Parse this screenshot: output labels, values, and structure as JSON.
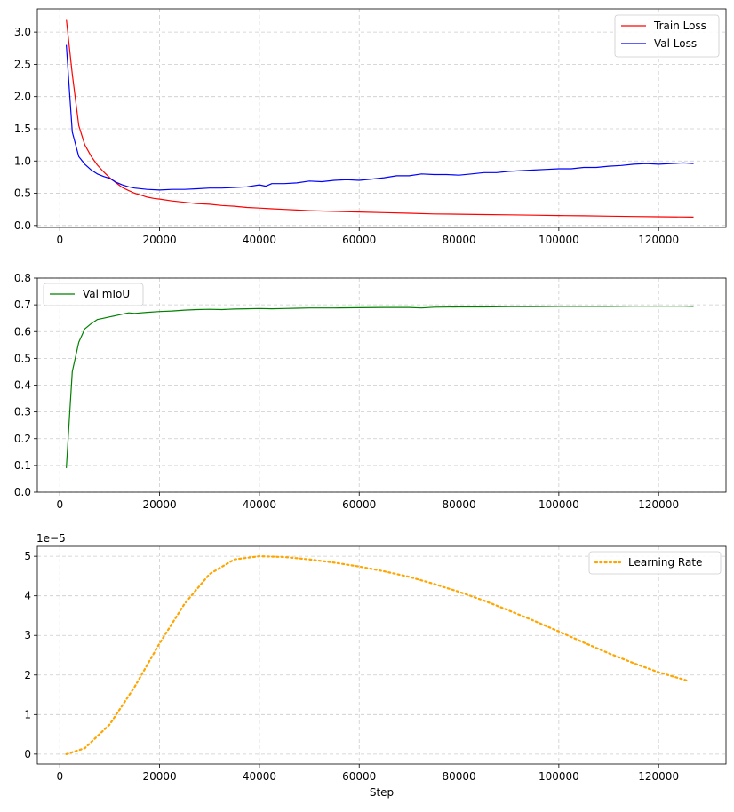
{
  "chart_data": [
    {
      "type": "line",
      "xlim": [
        -4500,
        133500
      ],
      "ylim": [
        -0.03,
        3.36
      ],
      "xticks": [
        0,
        20000,
        40000,
        60000,
        80000,
        100000,
        120000
      ],
      "xtick_labels": [
        "0",
        "20000",
        "40000",
        "60000",
        "80000",
        "100000",
        "120000"
      ],
      "yticks": [
        0.0,
        0.5,
        1.0,
        1.5,
        2.0,
        2.5,
        3.0
      ],
      "ytick_labels": [
        "0.0",
        "0.5",
        "1.0",
        "1.5",
        "2.0",
        "2.5",
        "3.0"
      ],
      "grid": true,
      "legend": "upper right",
      "series": [
        {
          "name": "Train Loss",
          "color": "#ff0000",
          "style": "solid",
          "x": [
            1300,
            2500,
            3800,
            5000,
            6300,
            7500,
            8800,
            10000,
            11300,
            12500,
            13800,
            15000,
            16300,
            17500,
            18800,
            20000,
            22500,
            25000,
            27500,
            30000,
            32500,
            35000,
            37500,
            40000,
            42500,
            45000,
            47500,
            50000,
            55000,
            60000,
            65000,
            70000,
            75000,
            80000,
            85000,
            90000,
            95000,
            100000,
            105000,
            110000,
            115000,
            120000,
            127000
          ],
          "y": [
            3.2,
            2.35,
            1.55,
            1.25,
            1.07,
            0.94,
            0.83,
            0.74,
            0.66,
            0.59,
            0.54,
            0.5,
            0.47,
            0.44,
            0.42,
            0.41,
            0.38,
            0.36,
            0.34,
            0.33,
            0.31,
            0.3,
            0.28,
            0.27,
            0.26,
            0.25,
            0.24,
            0.23,
            0.22,
            0.21,
            0.2,
            0.19,
            0.18,
            0.175,
            0.17,
            0.165,
            0.16,
            0.155,
            0.15,
            0.145,
            0.14,
            0.135,
            0.13
          ]
        },
        {
          "name": "Val Loss",
          "color": "#0000ff",
          "style": "solid",
          "x": [
            1300,
            2500,
            3800,
            5000,
            6300,
            7500,
            8800,
            10000,
            11300,
            12500,
            13800,
            15000,
            17500,
            20000,
            22500,
            25000,
            27500,
            30000,
            32500,
            35000,
            37500,
            40000,
            41300,
            42500,
            45000,
            47500,
            50000,
            52500,
            55000,
            57500,
            60000,
            62500,
            65000,
            67500,
            70000,
            72500,
            75000,
            77500,
            80000,
            82500,
            85000,
            87500,
            90000,
            92500,
            95000,
            97500,
            100000,
            102500,
            105000,
            107500,
            110000,
            112500,
            115000,
            117500,
            120000,
            122500,
            125000,
            127000
          ],
          "y": [
            2.8,
            1.45,
            1.07,
            0.95,
            0.86,
            0.8,
            0.76,
            0.73,
            0.67,
            0.63,
            0.6,
            0.58,
            0.56,
            0.55,
            0.56,
            0.56,
            0.57,
            0.58,
            0.58,
            0.59,
            0.6,
            0.63,
            0.61,
            0.65,
            0.65,
            0.66,
            0.69,
            0.68,
            0.7,
            0.71,
            0.7,
            0.72,
            0.74,
            0.77,
            0.77,
            0.8,
            0.79,
            0.79,
            0.78,
            0.8,
            0.82,
            0.82,
            0.84,
            0.85,
            0.86,
            0.87,
            0.88,
            0.88,
            0.9,
            0.9,
            0.92,
            0.93,
            0.95,
            0.96,
            0.95,
            0.96,
            0.97,
            0.96
          ]
        }
      ]
    },
    {
      "type": "line",
      "xlim": [
        -4500,
        133500
      ],
      "ylim": [
        0.0,
        0.8
      ],
      "xticks": [
        0,
        20000,
        40000,
        60000,
        80000,
        100000,
        120000
      ],
      "xtick_labels": [
        "0",
        "20000",
        "40000",
        "60000",
        "80000",
        "100000",
        "120000"
      ],
      "yticks": [
        0.0,
        0.1,
        0.2,
        0.3,
        0.4,
        0.5,
        0.6,
        0.7,
        0.8
      ],
      "ytick_labels": [
        "0.0",
        "0.1",
        "0.2",
        "0.3",
        "0.4",
        "0.5",
        "0.6",
        "0.7",
        "0.8"
      ],
      "grid": true,
      "legend": "upper left",
      "series": [
        {
          "name": "Val mIoU",
          "color": "#008000",
          "style": "solid",
          "x": [
            1300,
            2500,
            3800,
            5000,
            6300,
            7500,
            8800,
            10000,
            11300,
            12500,
            13800,
            15000,
            17500,
            20000,
            22500,
            25000,
            27500,
            30000,
            32500,
            35000,
            37500,
            40000,
            42500,
            45000,
            47500,
            50000,
            55000,
            60000,
            65000,
            70000,
            72500,
            75000,
            80000,
            85000,
            90000,
            95000,
            100000,
            105000,
            110000,
            115000,
            120000,
            125000,
            127000
          ],
          "y": [
            0.09,
            0.45,
            0.56,
            0.61,
            0.63,
            0.645,
            0.65,
            0.655,
            0.66,
            0.665,
            0.67,
            0.668,
            0.672,
            0.675,
            0.677,
            0.68,
            0.682,
            0.683,
            0.682,
            0.684,
            0.685,
            0.686,
            0.685,
            0.686,
            0.687,
            0.688,
            0.688,
            0.689,
            0.69,
            0.69,
            0.688,
            0.691,
            0.692,
            0.692,
            0.693,
            0.693,
            0.694,
            0.694,
            0.694,
            0.695,
            0.695,
            0.695,
            0.694
          ]
        }
      ]
    },
    {
      "type": "line",
      "xlim": [
        -4500,
        133500
      ],
      "ylim": [
        -0.25,
        5.25
      ],
      "y_scale_label": "1e−5",
      "xticks": [
        0,
        20000,
        40000,
        60000,
        80000,
        100000,
        120000
      ],
      "xtick_labels": [
        "0",
        "20000",
        "40000",
        "60000",
        "80000",
        "100000",
        "120000"
      ],
      "yticks": [
        0,
        1,
        2,
        3,
        4,
        5
      ],
      "ytick_labels": [
        "0",
        "1",
        "2",
        "3",
        "4",
        "5"
      ],
      "grid": true,
      "legend": "upper right",
      "xlabel": "Step",
      "series": [
        {
          "name": "Learning Rate",
          "color": "#ffa500",
          "style": "dotted",
          "x": [
            1300,
            5000,
            10000,
            15000,
            20000,
            25000,
            30000,
            35000,
            40000,
            45000,
            50000,
            55000,
            60000,
            65000,
            70000,
            75000,
            80000,
            85000,
            90000,
            95000,
            100000,
            105000,
            110000,
            115000,
            120000,
            126000
          ],
          "y": [
            0.0,
            0.15,
            0.75,
            1.7,
            2.8,
            3.8,
            4.55,
            4.92,
            5.0,
            4.98,
            4.92,
            4.84,
            4.74,
            4.62,
            4.48,
            4.3,
            4.1,
            3.88,
            3.63,
            3.37,
            3.1,
            2.82,
            2.55,
            2.3,
            2.07,
            1.85
          ]
        }
      ]
    }
  ]
}
